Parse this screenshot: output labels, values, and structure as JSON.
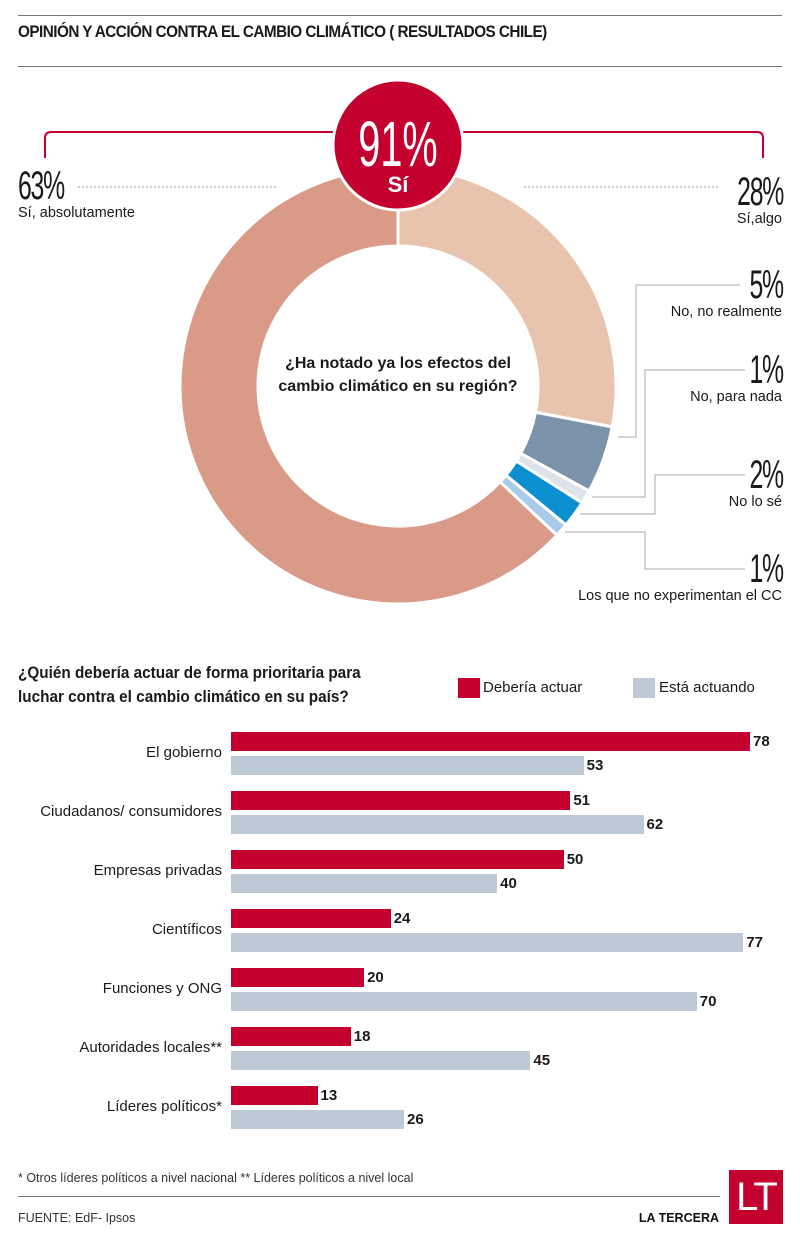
{
  "header": {
    "title": "OPINIÓN Y ACCIÓN CONTRA EL CAMBIO CLIMÁTICO ( RESULTADOS CHILE)"
  },
  "colors": {
    "accent_red": "#c4002e",
    "si_absolutamente": "#d99a88",
    "si_algo": "#e8c3ad",
    "no_no_realmente": "#7a93a8",
    "no_para_nada": "#dde3e8",
    "no_lo_se": "#0b8fd0",
    "no_experimentan": "#a9cbe8",
    "bar_deberia": "#c4002e",
    "bar_esta": "#bdc9d4"
  },
  "chart_data": [
    {
      "type": "pie",
      "title": "¿Ha notado ya los efectos del cambio climático en su región?",
      "summary": {
        "value": "91%",
        "label": "Sí"
      },
      "slices": [
        {
          "label": "Sí,algo",
          "value": 28,
          "display": "28%"
        },
        {
          "label": "No, no realmente",
          "value": 5,
          "display": "5%"
        },
        {
          "label": "No, para nada",
          "value": 1,
          "display": "1%"
        },
        {
          "label": "No lo sé",
          "value": 2,
          "display": "2%"
        },
        {
          "label": "Los que no experimentan el CC",
          "value": 1,
          "display": "1%"
        },
        {
          "label": "Sí, absolutamente",
          "value": 63,
          "display": "63%"
        }
      ],
      "donut": true,
      "start": "top",
      "direction": "clockwise"
    },
    {
      "type": "bar",
      "orientation": "horizontal",
      "title": "¿Quién debería actuar de forma prioritaria para luchar contra el cambio climático en su país?",
      "categories": [
        "El gobierno",
        "Ciudadanos/ consumidores",
        "Empresas privadas",
        "Científicos",
        "Funciones y ONG",
        "Autoridades locales**",
        "Líderes políticos*"
      ],
      "series": [
        {
          "name": "Debería actuar",
          "values": [
            78,
            51,
            50,
            24,
            20,
            18,
            13
          ]
        },
        {
          "name": "Está actuando",
          "values": [
            53,
            62,
            40,
            77,
            70,
            45,
            26
          ]
        }
      ],
      "xlim": [
        0,
        78
      ],
      "legend": "top-right",
      "grid": false
    }
  ],
  "donut_labels": {
    "si_abs_pct": "63%",
    "si_abs_label": "Sí, absolutamente",
    "si_algo_pct": "28%",
    "si_algo_label": "Sí,algo",
    "no_real_pct": "5%",
    "no_real_label": "No, no realmente",
    "no_nada_pct": "1%",
    "no_nada_label": "No, para nada",
    "no_se_pct": "2%",
    "no_se_label": "No lo sé",
    "no_exp_pct": "1%",
    "no_exp_label": "Los que no experimentan el CC",
    "badge_pct": "91%",
    "badge_label": "Sí",
    "question": "¿Ha notado ya los efectos del cambio climático en su región?"
  },
  "bars_section": {
    "question_line1": "¿Quién debería actuar de forma prioritaria para",
    "question_line2": "luchar contra el cambio climático en su país?",
    "legend_deberia": "Debería actuar",
    "legend_esta": "Está actuando"
  },
  "footer": {
    "note": "* Otros líderes políticos a nivel nacional ** Líderes políticos a nivel local",
    "source": "FUENTE: EdF- Ipsos",
    "brand": "LA TERCERA",
    "logo": "LT"
  }
}
